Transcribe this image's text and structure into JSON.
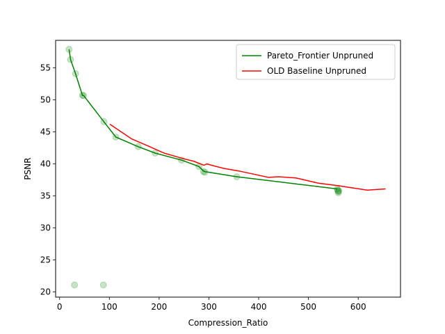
{
  "chart_data": {
    "type": "line",
    "title": "",
    "xlabel": "Compression_Ratio",
    "ylabel": "PSNR",
    "xlim": [
      -8,
      685
    ],
    "ylim": [
      19.2,
      59.3
    ],
    "xticks": [
      0,
      100,
      200,
      300,
      400,
      500,
      600
    ],
    "yticks": [
      20,
      25,
      30,
      35,
      40,
      45,
      50,
      55
    ],
    "grid": false,
    "legend_position": "top-right",
    "scatter_points": {
      "color": "#008000",
      "x": [
        19,
        22,
        32,
        46,
        48,
        89,
        113,
        158,
        192,
        245,
        280,
        289,
        292,
        356,
        558,
        559,
        560,
        560,
        561,
        30,
        88
      ],
      "y": [
        57.9,
        56.3,
        54.1,
        50.7,
        50.7,
        46.6,
        44.2,
        42.7,
        41.7,
        40.6,
        39.6,
        38.8,
        38.7,
        38.0,
        36.1,
        35.9,
        35.7,
        35.5,
        35.8,
        21.1,
        21.1
      ]
    },
    "series": [
      {
        "name": "Pareto_Frontier Unpruned",
        "color": "#008000",
        "x": [
          19,
          22,
          32,
          46,
          48,
          89,
          113,
          158,
          192,
          245,
          280,
          289,
          292,
          356,
          558
        ],
        "y": [
          57.9,
          56.3,
          54.1,
          50.7,
          50.7,
          46.6,
          44.2,
          42.7,
          41.7,
          40.6,
          39.6,
          38.9,
          38.8,
          38.0,
          36.1
        ]
      },
      {
        "name": "OLD Baseline Unpruned",
        "color": "#ff0000",
        "x": [
          101,
          145,
          178,
          210,
          245,
          270,
          290,
          296,
          310,
          330,
          360,
          390,
          420,
          440,
          475,
          520,
          560,
          585,
          618,
          655
        ],
        "y": [
          46.2,
          43.9,
          42.8,
          41.7,
          40.9,
          40.4,
          39.8,
          40.0,
          39.7,
          39.3,
          38.9,
          38.4,
          37.9,
          38.0,
          37.8,
          37.0,
          36.6,
          36.3,
          35.9,
          36.1
        ]
      }
    ]
  }
}
